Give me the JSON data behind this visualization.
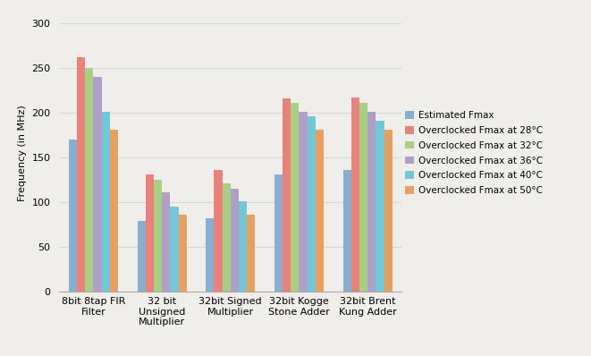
{
  "categories": [
    "8bit 8tap FIR\nFilter",
    "32 bit\nUnsigned\nMultiplier",
    "32bit Signed\nMultiplier",
    "32bit Kogge\nStone Adder",
    "32bit Brent\nKung Adder"
  ],
  "series": [
    {
      "label": "Estimated Fmax",
      "color": "#8AAECE",
      "values": [
        170,
        79,
        82,
        131,
        136
      ]
    },
    {
      "label": "Overclocked Fmax at 28°C",
      "color": "#E8827A",
      "values": [
        262,
        131,
        136,
        216,
        217
      ]
    },
    {
      "label": "Overclocked Fmax at 32°C",
      "color": "#AACF82",
      "values": [
        250,
        125,
        121,
        211,
        211
      ]
    },
    {
      "label": "Overclocked Fmax at 36°C",
      "color": "#AFA0C8",
      "values": [
        240,
        111,
        115,
        201,
        201
      ]
    },
    {
      "label": "Overclocked Fmax at 40°C",
      "color": "#72C8D8",
      "values": [
        201,
        95,
        101,
        196,
        191
      ]
    },
    {
      "label": "Overclocked Fmax at 50°C",
      "color": "#E8A060",
      "values": [
        181,
        86,
        86,
        181,
        181
      ]
    }
  ],
  "ylabel": "Frequency (in MHz)",
  "ylim": [
    0,
    310
  ],
  "yticks": [
    0,
    50,
    100,
    150,
    200,
    250,
    300
  ],
  "grid_color": "#d8d8d8",
  "bg_color": "#f0eeea",
  "figsize": [
    6.61,
    3.98
  ],
  "dpi": 100,
  "bar_width": 0.12,
  "legend_fontsize": 7.5,
  "axis_fontsize": 8,
  "tick_fontsize": 8
}
